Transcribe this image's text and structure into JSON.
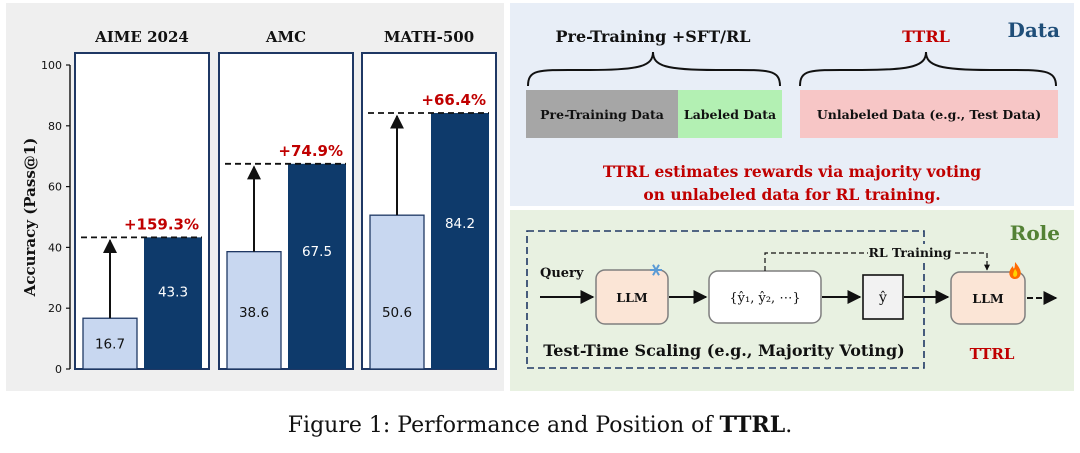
{
  "chart_data": {
    "type": "bar",
    "ylabel": "Accuracy (Pass@1)",
    "ylim": [
      0,
      100
    ],
    "yticks": [
      0,
      20,
      40,
      60,
      80,
      100
    ],
    "panels": [
      {
        "title": "AIME 2024",
        "baseline": 16.7,
        "ttrl": 43.3,
        "gain": "+159.3%"
      },
      {
        "title": "AMC",
        "baseline": 38.6,
        "ttrl": 67.5,
        "gain": "+74.9%"
      },
      {
        "title": "MATH-500",
        "baseline": 50.6,
        "ttrl": 84.2,
        "gain": "+66.4%"
      }
    ],
    "colors": {
      "baseline": "#c8d7f0",
      "ttrl": "#0e3a6b",
      "gain": "#c00000"
    }
  },
  "data_section": {
    "title": "Data",
    "left_header": "Pre-Training +SFT/RL",
    "right_header": "TTRL",
    "pretrain_box": "Pre-Training Data",
    "labeled_box": "Labeled Data",
    "unlabeled_box": "Unlabeled Data (e.g., Test Data)",
    "statement_line1": "TTRL estimates rewards via majority voting",
    "statement_line2": "on unlabeled data for RL training."
  },
  "role_section": {
    "title": "Role",
    "query_label": "Query",
    "llm_label": "LLM",
    "candidates": "{ŷ₁, ŷ₂, ⋯}",
    "answer": "ŷ",
    "rl_training": "RL Training",
    "llm_out_label": "LLM",
    "tts_caption": "Test-Time Scaling (e.g., Majority Voting)",
    "ttrl_label": "TTRL",
    "frozen_icon": "snowflake-icon",
    "tuned_icon": "fire-icon"
  },
  "caption": {
    "prefix": "Figure 1: Performance and Position of ",
    "bold": "TTRL",
    "suffix": "."
  }
}
